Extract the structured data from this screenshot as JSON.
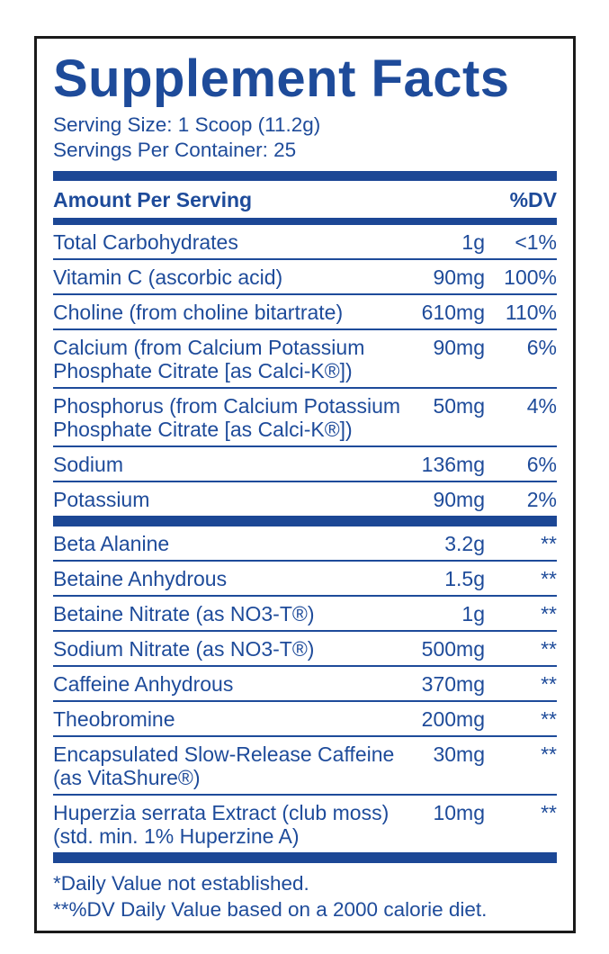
{
  "label": {
    "title": "Supplement Facts",
    "serving_size": "Serving Size: 1 Scoop (11.2g)",
    "servings_per_container": "Servings Per Container: 25",
    "columns": {
      "amount_per_serving": "Amount Per Serving",
      "dv": "%DV"
    },
    "rows": [
      {
        "name": "Total Carbohydrates",
        "name2": "",
        "amount": "1g",
        "dv": "<1%"
      },
      {
        "name": "Vitamin C (ascorbic acid)",
        "name2": "",
        "amount": "90mg",
        "dv": "100%"
      },
      {
        "name": "Choline (from choline bitartrate)",
        "name2": "",
        "amount": "610mg",
        "dv": "110%"
      },
      {
        "name": "Calcium (from Calcium Potassium",
        "name2": "Phosphate Citrate [as Calci-K®])",
        "amount": "90mg",
        "dv": "6%"
      },
      {
        "name": "Phosphorus (from Calcium Potassium",
        "name2": "Phosphate Citrate [as Calci-K®])",
        "amount": "50mg",
        "dv": "4%"
      },
      {
        "name": "Sodium",
        "name2": "",
        "amount": "136mg",
        "dv": "6%"
      },
      {
        "name": "Potassium",
        "name2": "",
        "amount": "90mg",
        "dv": "2%"
      },
      {
        "name": "Beta Alanine",
        "name2": "",
        "amount": "3.2g",
        "dv": "**"
      },
      {
        "name": "Betaine Anhydrous",
        "name2": "",
        "amount": "1.5g",
        "dv": "**"
      },
      {
        "name": "Betaine Nitrate (as NO3-T®)",
        "name2": "",
        "amount": "1g",
        "dv": "**"
      },
      {
        "name": "Sodium Nitrate (as NO3-T®)",
        "name2": "",
        "amount": "500mg",
        "dv": "**"
      },
      {
        "name": "Caffeine Anhydrous",
        "name2": "",
        "amount": "370mg",
        "dv": "**"
      },
      {
        "name": "Theobromine",
        "name2": "",
        "amount": "200mg",
        "dv": "**"
      },
      {
        "name": "Encapsulated Slow-Release Caffeine",
        "name2": "(as VitaShure®)",
        "amount": "30mg",
        "dv": "**"
      },
      {
        "name": "Huperzia serrata Extract (club moss)",
        "name2": "(std. min. 1% Huperzine A)",
        "amount": "10mg",
        "dv": "**"
      }
    ],
    "footnotes": [
      "*Daily Value not established.",
      "**%DV Daily Value based on a 2000 calorie diet."
    ],
    "colors": {
      "text_blue": "#1E4B9A",
      "bar_blue": "#1C4795",
      "border_black": "#1A1A1A",
      "background": "#FFFFFF"
    }
  }
}
